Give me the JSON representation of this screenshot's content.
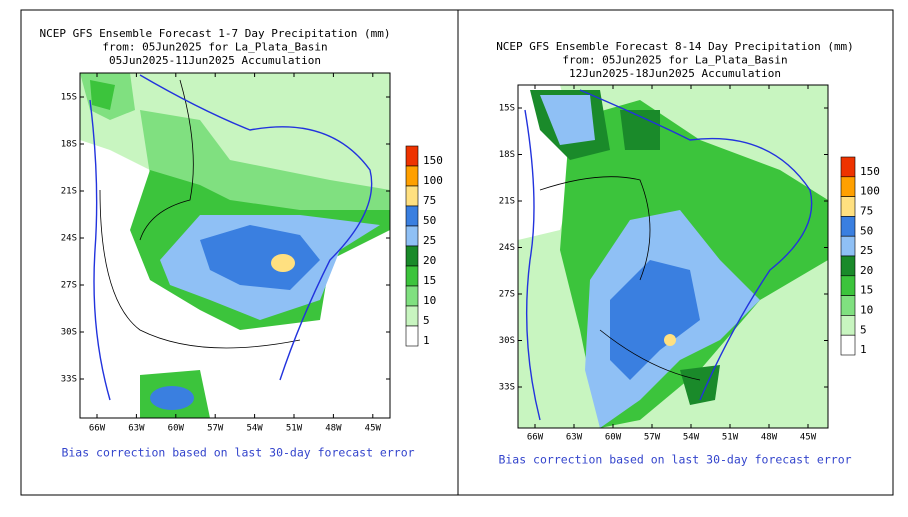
{
  "panels": [
    {
      "title_lines": [
        "NCEP GFS Ensemble Forecast 1-7 Day Precipitation (mm)",
        "from: 05Jun2025   for La_Plata_Basin",
        "05Jun2025-11Jun2025 Accumulation"
      ],
      "lat_ticks": [
        "15S",
        "18S",
        "21S",
        "24S",
        "27S",
        "30S",
        "33S"
      ],
      "lon_ticks": [
        "66W",
        "63W",
        "60W",
        "57W",
        "54W",
        "51W",
        "48W",
        "45W"
      ],
      "colorbar": {
        "levels": [
          150,
          100,
          75,
          50,
          25,
          20,
          15,
          10,
          5,
          1
        ],
        "colors": [
          "#ee3300",
          "#ffa000",
          "#ffe080",
          "#3a7fe0",
          "#8fc0f5",
          "#1a8a2a",
          "#3cc43c",
          "#80e080",
          "#c8f5c0",
          "#ffffff"
        ]
      },
      "footnote": "Bias correction based on last 30-day forecast error"
    },
    {
      "title_lines": [
        "NCEP GFS Ensemble Forecast 8-14 Day Precipitation (mm)",
        "from: 05Jun2025   for La_Plata_Basin",
        "12Jun2025-18Jun2025 Accumulation"
      ],
      "lat_ticks": [
        "15S",
        "18S",
        "21S",
        "24S",
        "27S",
        "30S",
        "33S"
      ],
      "lon_ticks": [
        "66W",
        "63W",
        "60W",
        "57W",
        "54W",
        "51W",
        "48W",
        "45W"
      ],
      "colorbar": {
        "levels": [
          150,
          100,
          75,
          50,
          25,
          20,
          15,
          10,
          5,
          1
        ],
        "colors": [
          "#ee3300",
          "#ffa000",
          "#ffe080",
          "#3a7fe0",
          "#8fc0f5",
          "#1a8a2a",
          "#3cc43c",
          "#80e080",
          "#c8f5c0",
          "#ffffff"
        ]
      },
      "footnote": "Bias correction based on last 30-day forecast error"
    }
  ]
}
